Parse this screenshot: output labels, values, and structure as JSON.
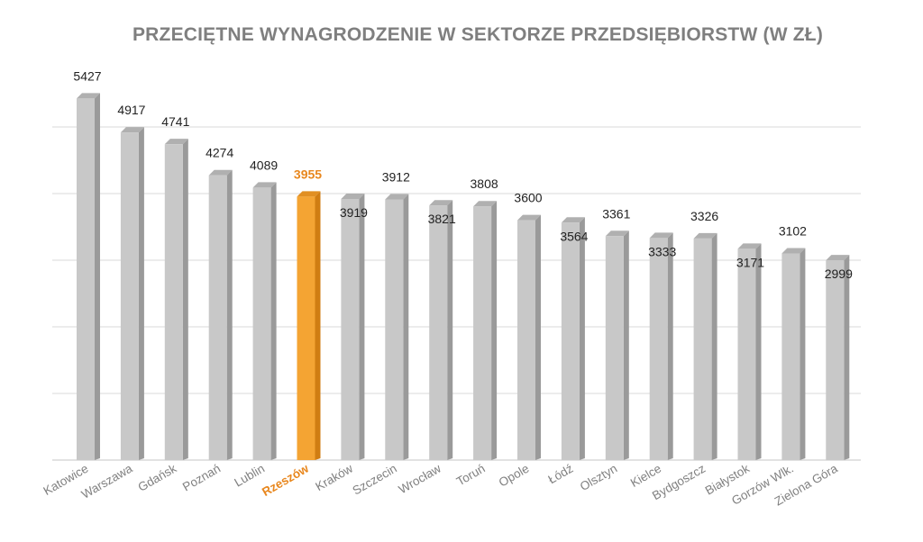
{
  "chart_data": {
    "type": "bar",
    "title": "PRZECIĘTNE WYNAGRODZENIE W SEKTORZE PRZEDSIĘBIORSTW (W ZŁ)",
    "xlabel": "",
    "ylabel": "",
    "ylim": [
      0,
      6000
    ],
    "y_tick_step": 1000,
    "grid": true,
    "y_tick_labels_visible": false,
    "categories": [
      "Katowice",
      "Warszawa",
      "Gdańsk",
      "Poznań",
      "Lublin",
      "Rzeszów",
      "Kraków",
      "Szczecin",
      "Wrocław",
      "Toruń",
      "Opole",
      "Łódź",
      "Olsztyn",
      "Kielce",
      "Bydgoszcz",
      "Białystok",
      "Gorzów Wlk.",
      "Zielona Góra"
    ],
    "values": [
      5427,
      4917,
      4741,
      4274,
      4089,
      3955,
      3919,
      3912,
      3821,
      3808,
      3600,
      3564,
      3361,
      3333,
      3326,
      3171,
      3102,
      2999
    ],
    "data_labels": [
      "5427",
      "4917",
      "4741",
      "4274",
      "4089",
      "3955",
      "3919",
      "3912",
      "3821",
      "3808",
      "3600",
      "3564",
      "3361",
      "3333",
      "3326",
      "3171",
      "3102",
      "2999"
    ],
    "highlight_category": "Rzeszów",
    "colors": {
      "bar": "#c8c8c8",
      "bar_side": "#9a9a9a",
      "bar_top": "#b0b0b0",
      "highlight": "#f4a433",
      "highlight_side": "#d07d12",
      "highlight_top": "#e18f22",
      "highlight_text": "#e8871e",
      "label_text": "#222222",
      "category_text": "#808080",
      "grid": "#d9d9d9",
      "title": "#7f7f7f"
    }
  }
}
